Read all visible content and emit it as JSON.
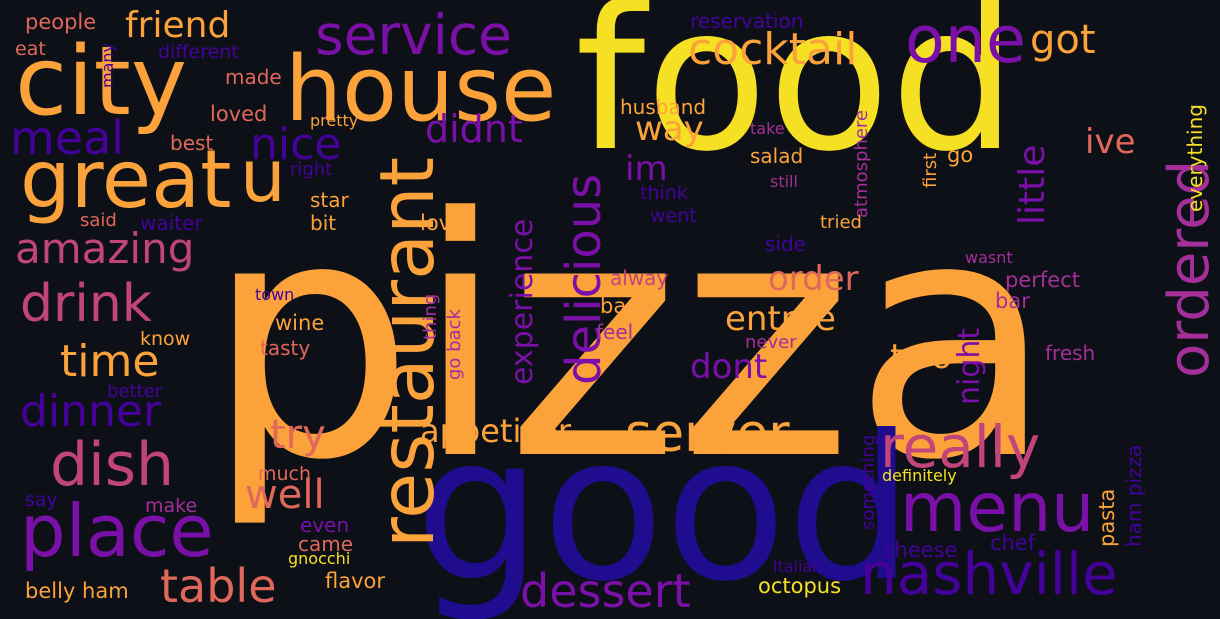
{
  "palette": {
    "background": "#0d1017",
    "yellow": "#f6e024",
    "orange": "#fca23a",
    "salmon": "#e0685a",
    "pink": "#c1457b",
    "magenta": "#a42f9a",
    "purple": "#7a10a8",
    "indigo": "#44029b",
    "navy": "#1f0c8e"
  },
  "words": [
    {
      "text": "pizza",
      "color": "orange"
    },
    {
      "text": "food",
      "color": "yellow"
    },
    {
      "text": "good",
      "color": "navy"
    },
    {
      "text": "city",
      "color": "orange"
    },
    {
      "text": "house",
      "color": "orange"
    },
    {
      "text": "restaurant",
      "color": "orange"
    },
    {
      "text": "great",
      "color": "orange"
    },
    {
      "text": "u",
      "color": "orange"
    },
    {
      "text": "place",
      "color": "purple"
    },
    {
      "text": "menu",
      "color": "purple"
    },
    {
      "text": "nashville",
      "color": "indigo"
    },
    {
      "text": "ordered",
      "color": "magenta"
    },
    {
      "text": "really",
      "color": "pink"
    },
    {
      "text": "one",
      "color": "purple"
    },
    {
      "text": "service",
      "color": "purple"
    },
    {
      "text": "delicious",
      "color": "purple"
    },
    {
      "text": "server",
      "color": "orange"
    },
    {
      "text": "dish",
      "color": "pink"
    },
    {
      "text": "drink",
      "color": "pink"
    },
    {
      "text": "meal",
      "color": "indigo"
    },
    {
      "text": "table",
      "color": "salmon"
    },
    {
      "text": "dessert",
      "color": "purple"
    },
    {
      "text": "dinner",
      "color": "indigo"
    },
    {
      "text": "time",
      "color": "orange"
    },
    {
      "text": "amazing",
      "color": "pink"
    },
    {
      "text": "nice",
      "color": "indigo"
    },
    {
      "text": "cocktail",
      "color": "orange"
    },
    {
      "text": "friend",
      "color": "orange"
    },
    {
      "text": "got",
      "color": "orange"
    },
    {
      "text": "didnt",
      "color": "purple"
    },
    {
      "text": "experience",
      "color": "purple"
    },
    {
      "text": "appetizer",
      "color": "orange"
    },
    {
      "text": "well",
      "color": "salmon"
    },
    {
      "text": "try",
      "color": "salmon"
    },
    {
      "text": "little",
      "color": "purple"
    },
    {
      "text": "night",
      "color": "purple"
    },
    {
      "text": "entree",
      "color": "orange"
    },
    {
      "text": "order",
      "color": "salmon"
    },
    {
      "text": "dont",
      "color": "purple"
    },
    {
      "text": "two",
      "color": "orange"
    },
    {
      "text": "way",
      "color": "orange"
    },
    {
      "text": "ive",
      "color": "salmon"
    },
    {
      "text": "im",
      "color": "purple"
    },
    {
      "text": "reservation",
      "color": "indigo"
    },
    {
      "text": "husband",
      "color": "orange"
    },
    {
      "text": "people",
      "color": "salmon"
    },
    {
      "text": "eat",
      "color": "salmon"
    },
    {
      "text": "different",
      "color": "indigo"
    },
    {
      "text": "many",
      "color": "indigo"
    },
    {
      "text": "made",
      "color": "salmon"
    },
    {
      "text": "loved",
      "color": "salmon"
    },
    {
      "text": "pretty",
      "color": "orange"
    },
    {
      "text": "best",
      "color": "salmon"
    },
    {
      "text": "right",
      "color": "indigo"
    },
    {
      "text": "star",
      "color": "orange"
    },
    {
      "text": "bit",
      "color": "orange"
    },
    {
      "text": "said",
      "color": "salmon"
    },
    {
      "text": "waiter",
      "color": "indigo"
    },
    {
      "text": "love",
      "color": "orange"
    },
    {
      "text": "take",
      "color": "magenta"
    },
    {
      "text": "salad",
      "color": "orange"
    },
    {
      "text": "still",
      "color": "magenta"
    },
    {
      "text": "think",
      "color": "indigo"
    },
    {
      "text": "went",
      "color": "indigo"
    },
    {
      "text": "atmosphere",
      "color": "magenta"
    },
    {
      "text": "first",
      "color": "orange"
    },
    {
      "text": "go",
      "color": "orange"
    },
    {
      "text": "everything",
      "color": "yellow"
    },
    {
      "text": "tried",
      "color": "orange"
    },
    {
      "text": "side",
      "color": "indigo"
    },
    {
      "text": "wasnt",
      "color": "magenta"
    },
    {
      "text": "alway",
      "color": "pink"
    },
    {
      "text": "perfect",
      "color": "magenta"
    },
    {
      "text": "bar",
      "color": "magenta"
    },
    {
      "text": "back",
      "color": "orange"
    },
    {
      "text": "feel",
      "color": "magenta"
    },
    {
      "text": "thing",
      "color": "magenta"
    },
    {
      "text": "go back",
      "color": "magenta"
    },
    {
      "text": "town",
      "color": "indigo"
    },
    {
      "text": "wine",
      "color": "orange"
    },
    {
      "text": "tasty",
      "color": "salmon"
    },
    {
      "text": "know",
      "color": "orange"
    },
    {
      "text": "better",
      "color": "indigo"
    },
    {
      "text": "never",
      "color": "magenta"
    },
    {
      "text": "fresh",
      "color": "magenta"
    },
    {
      "text": "much",
      "color": "salmon"
    },
    {
      "text": "say",
      "color": "indigo"
    },
    {
      "text": "make",
      "color": "magenta"
    },
    {
      "text": "even",
      "color": "purple"
    },
    {
      "text": "came",
      "color": "salmon"
    },
    {
      "text": "gnocchi",
      "color": "yellow"
    },
    {
      "text": "flavor",
      "color": "orange"
    },
    {
      "text": "belly ham",
      "color": "orange"
    },
    {
      "text": "octopus",
      "color": "yellow"
    },
    {
      "text": "italian",
      "color": "indigo"
    },
    {
      "text": "cheese",
      "color": "indigo"
    },
    {
      "text": "chef",
      "color": "indigo"
    },
    {
      "text": "something",
      "color": "indigo"
    },
    {
      "text": "definitely",
      "color": "yellow"
    },
    {
      "text": "pasta",
      "color": "orange"
    },
    {
      "text": "ham pizza",
      "color": "indigo"
    }
  ]
}
